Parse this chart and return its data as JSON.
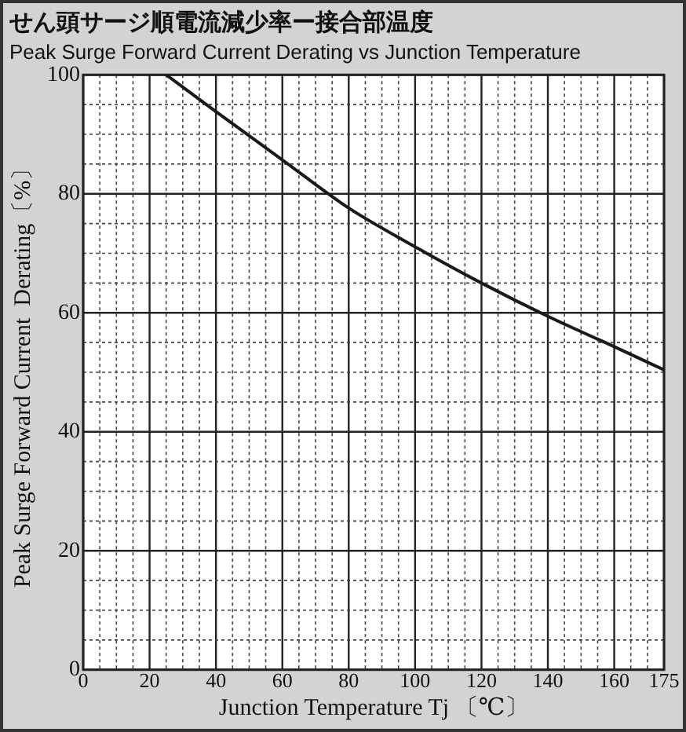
{
  "chart_data": {
    "type": "line",
    "title": "せん頭サージ順電流減少率ー接合部温度",
    "subtitle": "Peak Surge Forward Current Derating vs Junction Temperature",
    "xlabel": "Junction Temperature Tj 〔℃〕",
    "ylabel": "Peak Surge Forward Current  Derating〔%〕",
    "x": [
      25,
      40,
      60,
      80,
      100,
      120,
      140,
      160,
      175
    ],
    "series": [
      {
        "color": "#1a1a1a",
        "values": [
          100,
          93.8,
          85.7,
          77.6,
          71.1,
          65,
          59.4,
          54.3,
          50.4
        ]
      }
    ],
    "xlim": [
      0,
      175
    ],
    "xticks": [
      0,
      {
        "value": 5,
        "label": null
      },
      {
        "value": 10,
        "label": null
      },
      {
        "value": 15,
        "label": null
      },
      20,
      {
        "value": 25,
        "label": null
      },
      {
        "value": 30,
        "label": null
      },
      {
        "value": 35,
        "label": null
      },
      40,
      {
        "value": 45,
        "label": null
      },
      {
        "value": 50,
        "label": null
      },
      {
        "value": 55,
        "label": null
      },
      60,
      {
        "value": 65,
        "label": null
      },
      {
        "value": 70,
        "label": null
      },
      {
        "value": 75,
        "label": null
      },
      80,
      {
        "value": 85,
        "label": null
      },
      {
        "value": 90,
        "label": null
      },
      {
        "value": 95,
        "label": null
      },
      100,
      {
        "value": 105,
        "label": null
      },
      {
        "value": 110,
        "label": null
      },
      {
        "value": 115,
        "label": null
      },
      120,
      {
        "value": 125,
        "label": null
      },
      {
        "value": 130,
        "label": null
      },
      {
        "value": 135,
        "label": null
      },
      140,
      {
        "value": 145,
        "label": null
      },
      {
        "value": 150,
        "label": null
      },
      {
        "value": 155,
        "label": null
      },
      160,
      {
        "value": 165,
        "label": null
      },
      {
        "value": 170,
        "label": null
      },
      175
    ],
    "ylim": [
      0,
      100
    ],
    "yticks": [
      0,
      {
        "value": 5,
        "label": null
      },
      {
        "value": 10,
        "label": null
      },
      {
        "value": 15,
        "label": null
      },
      20,
      {
        "value": 25,
        "label": null
      },
      {
        "value": 30,
        "label": null
      },
      {
        "value": 35,
        "label": null
      },
      40,
      {
        "value": 45,
        "label": null
      },
      {
        "value": 50,
        "label": null
      },
      {
        "value": 55,
        "label": null
      },
      60,
      {
        "value": 65,
        "label": null
      },
      {
        "value": 70,
        "label": null
      },
      {
        "value": 75,
        "label": null
      },
      80,
      {
        "value": 85,
        "label": null
      },
      {
        "value": 90,
        "label": null
      },
      {
        "value": 95,
        "label": null
      },
      100
    ],
    "grid": true,
    "legend": false,
    "marker": "none",
    "line_style": "solid"
  }
}
